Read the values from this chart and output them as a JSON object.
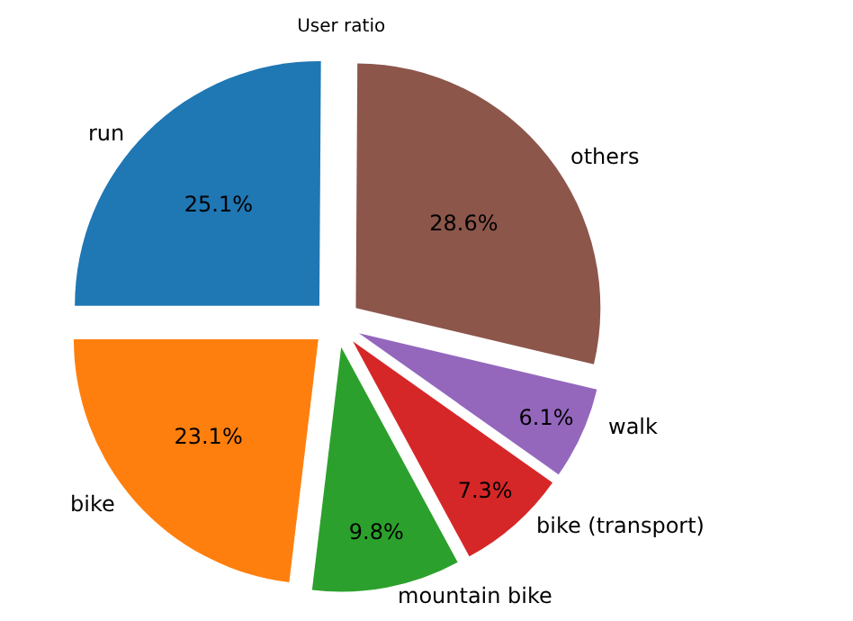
{
  "chart_data": {
    "type": "pie",
    "title": "User ratio",
    "categories": [
      "run",
      "bike",
      "mountain bike",
      "bike (transport)",
      "walk",
      "others"
    ],
    "values": [
      25.1,
      23.1,
      9.8,
      7.3,
      6.1,
      28.6
    ],
    "colors": [
      "#1f77b4",
      "#ff7f0e",
      "#2ca02c",
      "#d62728",
      "#9467bd",
      "#8c564b"
    ],
    "value_labels": [
      "25.1%",
      "23.1%",
      "9.8%",
      "7.3%",
      "6.1%",
      "28.6%"
    ],
    "legend": false
  }
}
